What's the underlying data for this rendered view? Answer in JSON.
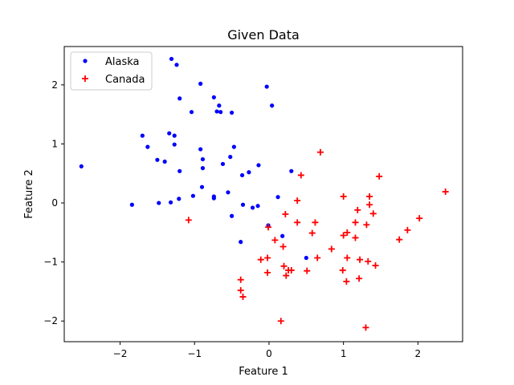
{
  "chart_data": {
    "type": "scatter",
    "title": "Given Data",
    "xlabel": "Feature 1",
    "ylabel": "Feature 2",
    "xlim": [
      -2.75,
      2.6
    ],
    "ylim": [
      -2.35,
      2.65
    ],
    "xticks": [
      -2,
      -1,
      0,
      1,
      2
    ],
    "yticks": [
      -2,
      -1,
      0,
      1,
      2
    ],
    "grid": false,
    "legend_position": "top-left",
    "series": [
      {
        "name": "Alaska",
        "marker": "dot",
        "color": "#0000ff",
        "points": [
          [
            -2.52,
            0.62
          ],
          [
            -1.31,
            2.44
          ],
          [
            -1.24,
            2.34
          ],
          [
            -0.92,
            2.02
          ],
          [
            -1.2,
            1.77
          ],
          [
            -1.04,
            1.54
          ],
          [
            -0.74,
            1.79
          ],
          [
            -0.7,
            1.55
          ],
          [
            -0.67,
            1.65
          ],
          [
            -0.65,
            1.54
          ],
          [
            -0.5,
            1.53
          ],
          [
            -0.03,
            1.97
          ],
          [
            0.04,
            1.65
          ],
          [
            -1.7,
            1.14
          ],
          [
            -1.63,
            0.95
          ],
          [
            -1.34,
            1.18
          ],
          [
            -1.27,
            1.14
          ],
          [
            -1.27,
            0.99
          ],
          [
            -1.5,
            0.73
          ],
          [
            -1.4,
            0.7
          ],
          [
            -0.92,
            0.91
          ],
          [
            -0.47,
            0.95
          ],
          [
            -0.52,
            0.78
          ],
          [
            -0.89,
            0.74
          ],
          [
            -0.89,
            0.59
          ],
          [
            -1.2,
            0.54
          ],
          [
            -0.62,
            0.66
          ],
          [
            -0.36,
            0.47
          ],
          [
            -0.27,
            0.52
          ],
          [
            -0.14,
            0.64
          ],
          [
            0.3,
            0.54
          ],
          [
            -0.9,
            0.27
          ],
          [
            -0.74,
            0.11
          ],
          [
            -0.74,
            0.08
          ],
          [
            -1.02,
            0.12
          ],
          [
            -1.21,
            0.07
          ],
          [
            -1.48,
            0.0
          ],
          [
            -1.32,
            0.01
          ],
          [
            -1.84,
            -0.03
          ],
          [
            -0.55,
            0.18
          ],
          [
            -0.35,
            -0.03
          ],
          [
            -0.22,
            -0.08
          ],
          [
            -0.15,
            -0.05
          ],
          [
            0.12,
            0.1
          ],
          [
            -0.5,
            -0.22
          ],
          [
            -0.01,
            -0.38
          ],
          [
            0.18,
            -0.56
          ],
          [
            0.5,
            -0.93
          ],
          [
            -0.38,
            -0.66
          ]
        ]
      },
      {
        "name": "Canada",
        "marker": "plus",
        "color": "#ff0000",
        "points": [
          [
            0.69,
            0.86
          ],
          [
            0.43,
            0.47
          ],
          [
            1.48,
            0.45
          ],
          [
            2.37,
            0.19
          ],
          [
            1.0,
            0.11
          ],
          [
            1.35,
            0.11
          ],
          [
            0.38,
            0.04
          ],
          [
            1.35,
            -0.03
          ],
          [
            1.19,
            -0.12
          ],
          [
            1.4,
            -0.18
          ],
          [
            0.22,
            -0.19
          ],
          [
            -1.08,
            -0.29
          ],
          [
            0.38,
            -0.33
          ],
          [
            0.62,
            -0.33
          ],
          [
            1.16,
            -0.33
          ],
          [
            1.31,
            -0.37
          ],
          [
            2.02,
            -0.26
          ],
          [
            -0.01,
            -0.41
          ],
          [
            1.86,
            -0.46
          ],
          [
            0.58,
            -0.51
          ],
          [
            1.05,
            -0.5
          ],
          [
            1.0,
            -0.55
          ],
          [
            1.16,
            -0.59
          ],
          [
            1.75,
            -0.62
          ],
          [
            0.08,
            -0.63
          ],
          [
            0.19,
            -0.74
          ],
          [
            0.84,
            -0.78
          ],
          [
            -0.02,
            -0.93
          ],
          [
            -0.11,
            -0.96
          ],
          [
            0.65,
            -0.93
          ],
          [
            1.05,
            -0.93
          ],
          [
            1.22,
            -0.96
          ],
          [
            1.33,
            -0.99
          ],
          [
            1.43,
            -1.06
          ],
          [
            0.2,
            -1.07
          ],
          [
            0.26,
            -1.14
          ],
          [
            0.3,
            -1.14
          ],
          [
            -0.02,
            -1.18
          ],
          [
            0.23,
            -1.23
          ],
          [
            0.51,
            -1.15
          ],
          [
            0.99,
            -1.14
          ],
          [
            -0.38,
            -1.3
          ],
          [
            1.21,
            -1.28
          ],
          [
            1.04,
            -1.33
          ],
          [
            -0.38,
            -1.48
          ],
          [
            -0.35,
            -1.59
          ],
          [
            0.16,
            -2.0
          ],
          [
            1.3,
            -2.11
          ]
        ]
      }
    ]
  }
}
